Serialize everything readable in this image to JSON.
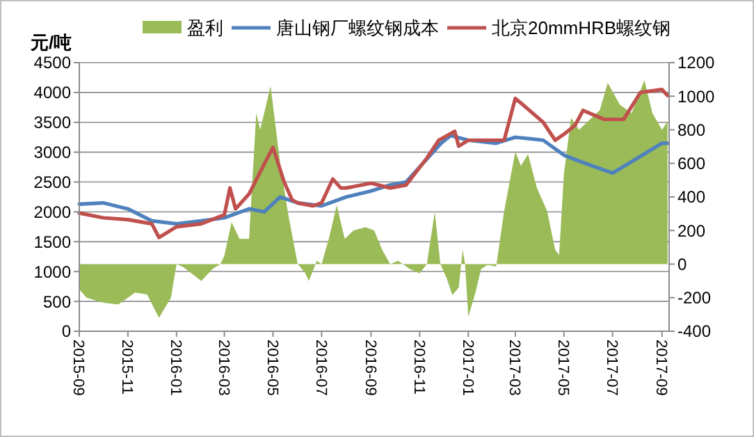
{
  "chart_data": {
    "type": "line",
    "ylabel": "元/吨",
    "legend": "top",
    "grid": "y",
    "xlim": [
      "2015-09-01",
      "2017-09-10"
    ],
    "xticks": [
      "2015-09",
      "2015-11",
      "2016-01",
      "2016-03",
      "2016-05",
      "2016-07",
      "2016-09",
      "2016-11",
      "2017-01",
      "2017-03",
      "2017-05",
      "2017-07",
      "2017-09"
    ],
    "ylim": [
      0,
      4500
    ],
    "yticks": [
      0,
      500,
      1000,
      1500,
      2000,
      2500,
      3000,
      3500,
      4000,
      4500
    ],
    "y2lim": [
      -400,
      1200
    ],
    "y2ticks": [
      -400,
      -200,
      0,
      200,
      400,
      600,
      800,
      1000,
      1200
    ],
    "series": [
      {
        "name": "盈利",
        "type": "area",
        "axis": "y2",
        "color": "#9bbb59",
        "x": [
          "2015-09-01",
          "2015-09-10",
          "2015-10-01",
          "2015-10-20",
          "2015-11-10",
          "2015-11-25",
          "2015-12-10",
          "2015-12-25",
          "2016-01-01",
          "2016-01-10",
          "2016-02-01",
          "2016-02-15",
          "2016-02-25",
          "2016-03-01",
          "2016-03-10",
          "2016-03-20",
          "2016-04-01",
          "2016-04-10",
          "2016-04-15",
          "2016-04-28",
          "2016-05-10",
          "2016-05-20",
          "2016-06-01",
          "2016-06-10",
          "2016-06-15",
          "2016-06-25",
          "2016-07-01",
          "2016-07-10",
          "2016-07-20",
          "2016-07-30",
          "2016-08-10",
          "2016-08-25",
          "2016-09-05",
          "2016-09-15",
          "2016-09-25",
          "2016-10-05",
          "2016-10-20",
          "2016-11-01",
          "2016-11-10",
          "2016-11-20",
          "2016-11-27",
          "2016-12-05",
          "2016-12-12",
          "2016-12-20",
          "2016-12-25",
          "2016-12-28",
          "2017-01-01",
          "2017-01-10",
          "2017-01-17",
          "2017-01-25",
          "2017-02-05",
          "2017-02-15",
          "2017-03-01",
          "2017-03-08",
          "2017-03-17",
          "2017-03-28",
          "2017-04-10",
          "2017-04-20",
          "2017-04-25",
          "2017-05-01",
          "2017-05-10",
          "2017-05-20",
          "2017-06-15",
          "2017-06-25",
          "2017-07-10",
          "2017-07-25",
          "2017-08-10",
          "2017-08-20",
          "2017-09-01",
          "2017-09-08"
        ],
        "values": [
          -150,
          -200,
          -230,
          -240,
          -170,
          -180,
          -320,
          -200,
          0,
          -20,
          -100,
          -30,
          0,
          50,
          250,
          150,
          150,
          900,
          800,
          1060,
          600,
          300,
          0,
          -50,
          -100,
          20,
          0,
          150,
          350,
          150,
          200,
          220,
          200,
          85,
          0,
          20,
          -30,
          -55,
          0,
          310,
          0,
          -85,
          -185,
          -140,
          85,
          0,
          -315,
          -170,
          -30,
          -5,
          -15,
          315,
          670,
          585,
          655,
          455,
          315,
          85,
          55,
          540,
          870,
          800,
          917,
          1080,
          950,
          900,
          1095,
          900,
          800,
          850
        ]
      },
      {
        "name": "唐山钢厂螺纹钢成本",
        "color": "#4f81bd",
        "x": [
          "2015-09-01",
          "2015-10-01",
          "2015-11-01",
          "2015-12-01",
          "2016-01-01",
          "2016-02-01",
          "2016-03-01",
          "2016-04-01",
          "2016-04-20",
          "2016-05-10",
          "2016-06-01",
          "2016-07-01",
          "2016-08-01",
          "2016-09-01",
          "2016-09-25",
          "2016-10-15",
          "2016-11-28",
          "2016-12-10",
          "2017-01-01",
          "2017-02-05",
          "2017-03-01",
          "2017-04-05",
          "2017-05-01",
          "2017-05-20",
          "2017-07-01",
          "2017-07-20",
          "2017-09-01",
          "2017-09-08"
        ],
        "values": [
          2130,
          2150,
          2050,
          1850,
          1800,
          1850,
          1900,
          2050,
          2000,
          2250,
          2150,
          2100,
          2250,
          2350,
          2450,
          2500,
          3150,
          3280,
          3200,
          3150,
          3250,
          3200,
          2950,
          2850,
          2650,
          2800,
          3150,
          3150
        ]
      },
      {
        "name": "北京20mmHRB螺纹钢",
        "color": "#c0504d",
        "x": [
          "2015-09-01",
          "2015-10-01",
          "2015-11-01",
          "2015-12-01",
          "2015-12-10",
          "2016-01-01",
          "2016-02-01",
          "2016-03-01",
          "2016-03-08",
          "2016-03-15",
          "2016-04-01",
          "2016-04-20",
          "2016-05-01",
          "2016-05-15",
          "2016-05-25",
          "2016-06-01",
          "2016-06-20",
          "2016-07-01",
          "2016-07-15",
          "2016-07-25",
          "2016-08-01",
          "2016-09-01",
          "2016-09-25",
          "2016-10-15",
          "2016-11-10",
          "2016-11-25",
          "2016-12-15",
          "2016-12-20",
          "2017-01-01",
          "2017-02-15",
          "2017-02-25",
          "2017-03-01",
          "2017-03-10",
          "2017-04-05",
          "2017-04-20",
          "2017-05-01",
          "2017-05-15",
          "2017-05-25",
          "2017-06-20",
          "2017-07-15",
          "2017-08-05",
          "2017-09-01",
          "2017-09-08"
        ],
        "values": [
          1980,
          1900,
          1870,
          1800,
          1570,
          1750,
          1800,
          1950,
          2400,
          2050,
          2300,
          2800,
          3080,
          2500,
          2200,
          2150,
          2100,
          2150,
          2550,
          2400,
          2400,
          2480,
          2400,
          2450,
          2900,
          3200,
          3350,
          3100,
          3200,
          3200,
          3700,
          3900,
          3800,
          3500,
          3200,
          3300,
          3450,
          3700,
          3550,
          3550,
          4000,
          4050,
          3950
        ]
      }
    ]
  }
}
